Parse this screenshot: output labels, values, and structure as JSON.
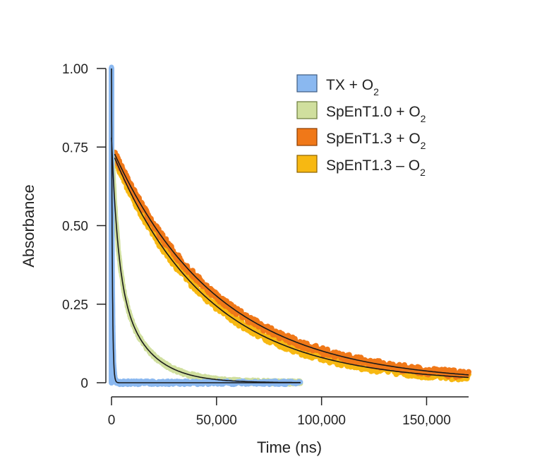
{
  "chart_data": {
    "type": "line",
    "title": "",
    "xlabel": "Time (ns)",
    "ylabel": "Absorbance",
    "xlim": [
      0,
      170000
    ],
    "ylim": [
      0,
      1.0
    ],
    "x_ticks": [
      0,
      50000,
      100000,
      150000
    ],
    "x_tick_labels": [
      "0",
      "50,000",
      "100,000",
      "150,000"
    ],
    "y_ticks": [
      0,
      0.25,
      0.5,
      0.75,
      1.0
    ],
    "y_tick_labels": [
      "0",
      "0.25",
      "0.50",
      "0.75",
      "1.00"
    ],
    "grid": false,
    "legend_position": "top-right",
    "series": [
      {
        "name": "TX + O2",
        "color": "#8ab8f0",
        "x_end": 90000,
        "values": [
          [
            0,
            1.0
          ],
          [
            300,
            0.85
          ],
          [
            800,
            0.5
          ],
          [
            1200,
            0.2
          ],
          [
            1600,
            0.05
          ],
          [
            2000,
            0.01
          ],
          [
            5000,
            0.0
          ],
          [
            20000,
            0.0
          ],
          [
            50000,
            0.0
          ],
          [
            90000,
            0.0
          ]
        ],
        "fit": {
          "amplitude": 1.0,
          "tau_ns": 400
        }
      },
      {
        "name": "SpEnT1.0 + O2",
        "color": "#d0df9e",
        "x_end": 90000,
        "values": [
          [
            0,
            0.78
          ],
          [
            2000,
            0.52
          ],
          [
            5000,
            0.35
          ],
          [
            10000,
            0.2
          ],
          [
            15000,
            0.13
          ],
          [
            20000,
            0.09
          ],
          [
            30000,
            0.05
          ],
          [
            40000,
            0.025
          ],
          [
            50000,
            0.015
          ],
          [
            60000,
            0.007
          ],
          [
            70000,
            0.004
          ],
          [
            90000,
            0.001
          ]
        ],
        "fit": {
          "components": [
            {
              "amplitude": 0.42,
              "tau_ns": 3000
            },
            {
              "amplitude": 0.36,
              "tau_ns": 14000
            }
          ]
        }
      },
      {
        "name": "SpEnT1.3 + O2",
        "color": "#f07818",
        "x_end": 170000,
        "values": [
          [
            2000,
            0.73
          ],
          [
            10000,
            0.59
          ],
          [
            20000,
            0.47
          ],
          [
            30000,
            0.38
          ],
          [
            40000,
            0.31
          ],
          [
            50000,
            0.255
          ],
          [
            60000,
            0.21
          ],
          [
            80000,
            0.145
          ],
          [
            100000,
            0.1
          ],
          [
            120000,
            0.067
          ],
          [
            140000,
            0.045
          ],
          [
            160000,
            0.03
          ],
          [
            170000,
            0.025
          ]
        ],
        "fit": {
          "amplitude": 0.75,
          "tau_ns": 50000
        }
      },
      {
        "name": "SpEnT1.3 – O2",
        "color": "#f7b812",
        "x_end": 170000,
        "values": [
          [
            2000,
            0.72
          ],
          [
            10000,
            0.57
          ],
          [
            20000,
            0.45
          ],
          [
            30000,
            0.36
          ],
          [
            40000,
            0.29
          ],
          [
            50000,
            0.235
          ],
          [
            60000,
            0.19
          ],
          [
            80000,
            0.125
          ],
          [
            100000,
            0.082
          ],
          [
            120000,
            0.054
          ],
          [
            140000,
            0.035
          ],
          [
            160000,
            0.022
          ],
          [
            170000,
            0.017
          ]
        ],
        "fit": {
          "amplitude": 0.74,
          "tau_ns": 45000
        }
      }
    ]
  },
  "legend": {
    "items": [
      {
        "base": "TX + O",
        "sub": "2",
        "color": "#8ab8f0",
        "border": "#3d5a80"
      },
      {
        "base": "SpEnT1.0 + O",
        "sub": "2",
        "color": "#d0df9e",
        "border": "#6a7a3a"
      },
      {
        "base": "SpEnT1.3 + O",
        "sub": "2",
        "color": "#f07818",
        "border": "#8a3d00"
      },
      {
        "base": "SpEnT1.3 – O",
        "sub": "2",
        "color": "#f7b812",
        "border": "#8a6000"
      }
    ]
  }
}
